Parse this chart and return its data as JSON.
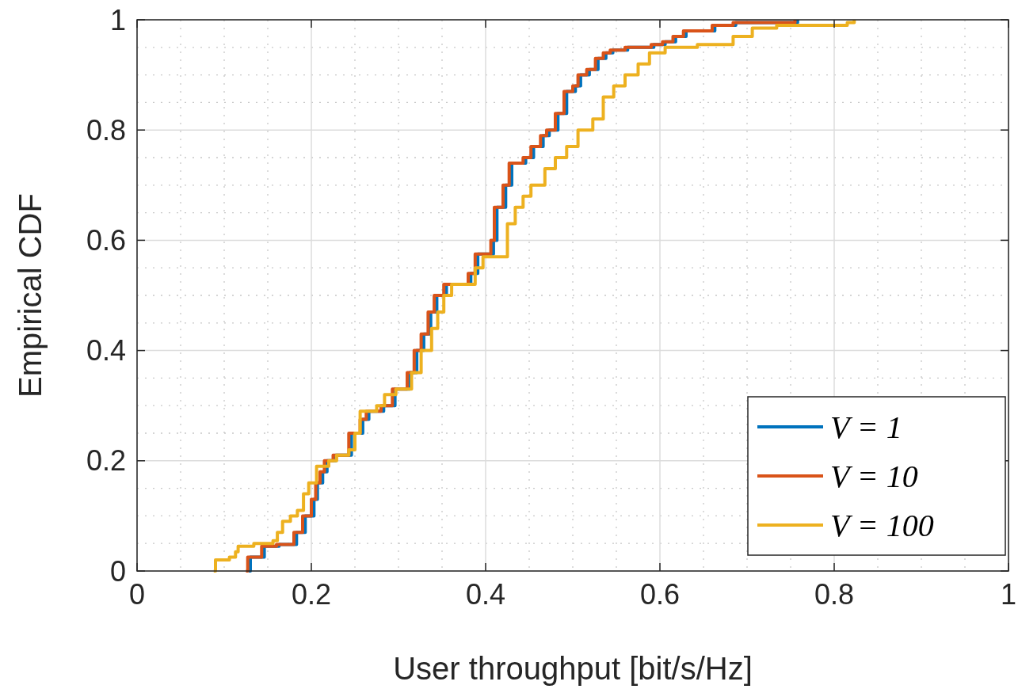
{
  "chart_data": {
    "type": "step",
    "xlabel": "User throughput [bit/s/Hz]",
    "ylabel": "Empirical CDF",
    "xlim": [
      0,
      1
    ],
    "ylim": [
      0,
      1
    ],
    "xticks": [
      0,
      0.2,
      0.4,
      0.6,
      0.8,
      1
    ],
    "yticks": [
      0,
      0.2,
      0.4,
      0.6,
      0.8,
      1
    ],
    "grid": true,
    "legend": "bottom right",
    "line_style": "solid",
    "marker": "none",
    "series": [
      {
        "name": "V = 1",
        "color": "#0072bd",
        "x": [
          0.128,
          0.13,
          0.146,
          0.163,
          0.183,
          0.193,
          0.203,
          0.207,
          0.213,
          0.218,
          0.228,
          0.246,
          0.259,
          0.266,
          0.283,
          0.296,
          0.313,
          0.321,
          0.329,
          0.337,
          0.344,
          0.355,
          0.383,
          0.391,
          0.409,
          0.413,
          0.423,
          0.43,
          0.446,
          0.455,
          0.466,
          0.473,
          0.483,
          0.493,
          0.503,
          0.509,
          0.519,
          0.529,
          0.538,
          0.546,
          0.563,
          0.593,
          0.606,
          0.618,
          0.63,
          0.663,
          0.687,
          0.758
        ],
        "values": [
          0,
          0.025,
          0.045,
          0.048,
          0.07,
          0.1,
          0.13,
          0.16,
          0.18,
          0.2,
          0.21,
          0.25,
          0.275,
          0.29,
          0.3,
          0.33,
          0.36,
          0.4,
          0.43,
          0.47,
          0.5,
          0.52,
          0.54,
          0.575,
          0.6,
          0.66,
          0.7,
          0.74,
          0.75,
          0.77,
          0.79,
          0.8,
          0.83,
          0.87,
          0.88,
          0.9,
          0.91,
          0.93,
          0.94,
          0.945,
          0.95,
          0.955,
          0.96,
          0.97,
          0.98,
          0.99,
          0.995,
          1
        ]
      },
      {
        "name": "V = 10",
        "color": "#d95319",
        "x": [
          0.125,
          0.127,
          0.143,
          0.16,
          0.18,
          0.19,
          0.2,
          0.205,
          0.21,
          0.215,
          0.225,
          0.243,
          0.256,
          0.263,
          0.28,
          0.293,
          0.31,
          0.318,
          0.326,
          0.334,
          0.341,
          0.352,
          0.38,
          0.388,
          0.406,
          0.41,
          0.42,
          0.427,
          0.443,
          0.452,
          0.463,
          0.47,
          0.48,
          0.49,
          0.5,
          0.506,
          0.516,
          0.526,
          0.535,
          0.543,
          0.56,
          0.59,
          0.603,
          0.615,
          0.627,
          0.66,
          0.684,
          0.755
        ],
        "values": [
          0,
          0.025,
          0.045,
          0.048,
          0.07,
          0.1,
          0.13,
          0.16,
          0.18,
          0.2,
          0.21,
          0.25,
          0.275,
          0.29,
          0.3,
          0.33,
          0.36,
          0.4,
          0.43,
          0.47,
          0.5,
          0.52,
          0.54,
          0.575,
          0.6,
          0.66,
          0.7,
          0.74,
          0.75,
          0.77,
          0.79,
          0.8,
          0.83,
          0.87,
          0.88,
          0.9,
          0.91,
          0.93,
          0.94,
          0.945,
          0.95,
          0.955,
          0.96,
          0.97,
          0.98,
          0.99,
          0.995,
          1
        ]
      },
      {
        "name": "V = 100",
        "color": "#edb120",
        "x": [
          0.088,
          0.09,
          0.106,
          0.113,
          0.116,
          0.134,
          0.156,
          0.161,
          0.167,
          0.176,
          0.184,
          0.191,
          0.197,
          0.206,
          0.22,
          0.229,
          0.243,
          0.25,
          0.256,
          0.275,
          0.284,
          0.297,
          0.315,
          0.326,
          0.338,
          0.345,
          0.352,
          0.361,
          0.388,
          0.397,
          0.425,
          0.434,
          0.443,
          0.452,
          0.468,
          0.48,
          0.493,
          0.506,
          0.523,
          0.535,
          0.547,
          0.56,
          0.575,
          0.588,
          0.606,
          0.643,
          0.684,
          0.706,
          0.734,
          0.815,
          0.823
        ],
        "values": [
          0,
          0.02,
          0.025,
          0.035,
          0.045,
          0.05,
          0.055,
          0.07,
          0.09,
          0.1,
          0.11,
          0.14,
          0.16,
          0.19,
          0.2,
          0.21,
          0.22,
          0.25,
          0.29,
          0.3,
          0.32,
          0.33,
          0.36,
          0.4,
          0.44,
          0.47,
          0.5,
          0.52,
          0.55,
          0.57,
          0.63,
          0.66,
          0.68,
          0.7,
          0.73,
          0.75,
          0.77,
          0.8,
          0.82,
          0.86,
          0.88,
          0.9,
          0.92,
          0.94,
          0.95,
          0.955,
          0.97,
          0.985,
          0.99,
          0.995,
          1
        ]
      }
    ]
  }
}
